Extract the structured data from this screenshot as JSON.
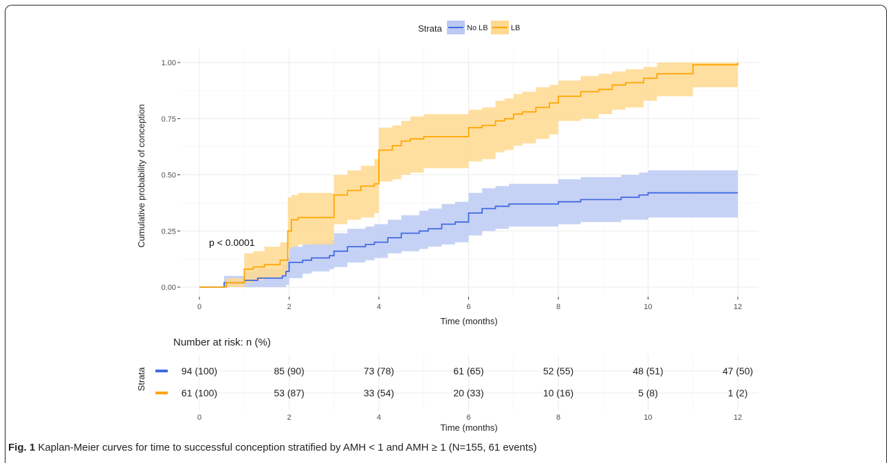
{
  "chart_data": {
    "type": "line",
    "subtype": "kaplan-meier step curves with confidence bands",
    "legend": {
      "title": "Strata",
      "position": "top",
      "entries": [
        {
          "name": "No LB",
          "color": "#4169e1"
        },
        {
          "name": "LB",
          "color": "#ffa500"
        }
      ]
    },
    "xlabel": "Time (months)",
    "ylabel": "Cumulative probability of conception",
    "xlim": [
      0,
      12
    ],
    "ylim": [
      0,
      1
    ],
    "x_ticks": [
      0,
      2,
      4,
      6,
      8,
      10,
      12
    ],
    "y_ticks": [
      "0.00",
      "0.25",
      "0.50",
      "0.75",
      "1.00"
    ],
    "annotation": "p < 0.0001",
    "grid": true,
    "series": [
      {
        "name": "No LB",
        "color": "#4169e1",
        "band_color": "#bccaf3",
        "points": [
          [
            0,
            0
          ],
          [
            0.55,
            0.02
          ],
          [
            1,
            0.03
          ],
          [
            1.3,
            0.04
          ],
          [
            1.85,
            0.05
          ],
          [
            1.93,
            0.07
          ],
          [
            2,
            0.11
          ],
          [
            2.3,
            0.12
          ],
          [
            2.5,
            0.13
          ],
          [
            2.9,
            0.14
          ],
          [
            3,
            0.16
          ],
          [
            3.3,
            0.18
          ],
          [
            3.7,
            0.19
          ],
          [
            3.9,
            0.2
          ],
          [
            4.2,
            0.22
          ],
          [
            4.5,
            0.24
          ],
          [
            4.9,
            0.25
          ],
          [
            5.1,
            0.26
          ],
          [
            5.4,
            0.28
          ],
          [
            5.7,
            0.29
          ],
          [
            6,
            0.33
          ],
          [
            6.3,
            0.35
          ],
          [
            6.6,
            0.36
          ],
          [
            6.9,
            0.37
          ],
          [
            7.6,
            0.37
          ],
          [
            8,
            0.38
          ],
          [
            8.5,
            0.39
          ],
          [
            8.9,
            0.39
          ],
          [
            9.4,
            0.4
          ],
          [
            9.8,
            0.41
          ],
          [
            10,
            0.42
          ],
          [
            12,
            0.42
          ]
        ],
        "lower": [
          [
            0,
            0
          ],
          [
            0.55,
            0
          ],
          [
            1,
            0
          ],
          [
            1.3,
            0
          ],
          [
            1.85,
            0
          ],
          [
            1.93,
            0.01
          ],
          [
            2,
            0.04
          ],
          [
            2.3,
            0.06
          ],
          [
            2.5,
            0.07
          ],
          [
            2.9,
            0.08
          ],
          [
            3,
            0.09
          ],
          [
            3.3,
            0.11
          ],
          [
            3.7,
            0.12
          ],
          [
            3.9,
            0.13
          ],
          [
            4.2,
            0.15
          ],
          [
            4.5,
            0.16
          ],
          [
            4.9,
            0.17
          ],
          [
            5.1,
            0.18
          ],
          [
            5.4,
            0.19
          ],
          [
            5.7,
            0.2
          ],
          [
            6,
            0.23
          ],
          [
            6.3,
            0.25
          ],
          [
            6.6,
            0.26
          ],
          [
            6.9,
            0.27
          ],
          [
            7.6,
            0.27
          ],
          [
            8,
            0.28
          ],
          [
            8.5,
            0.29
          ],
          [
            8.9,
            0.29
          ],
          [
            9.4,
            0.3
          ],
          [
            9.8,
            0.3
          ],
          [
            10,
            0.31
          ],
          [
            12,
            0.31
          ]
        ],
        "upper": [
          [
            0,
            0
          ],
          [
            0.55,
            0.05
          ],
          [
            1,
            0.07
          ],
          [
            1.3,
            0.08
          ],
          [
            1.85,
            0.1
          ],
          [
            1.93,
            0.13
          ],
          [
            2,
            0.18
          ],
          [
            2.3,
            0.19
          ],
          [
            2.5,
            0.2
          ],
          [
            2.9,
            0.21
          ],
          [
            3,
            0.24
          ],
          [
            3.3,
            0.26
          ],
          [
            3.7,
            0.27
          ],
          [
            3.9,
            0.28
          ],
          [
            4.2,
            0.3
          ],
          [
            4.5,
            0.32
          ],
          [
            4.9,
            0.34
          ],
          [
            5.1,
            0.35
          ],
          [
            5.4,
            0.37
          ],
          [
            5.7,
            0.38
          ],
          [
            6,
            0.42
          ],
          [
            6.3,
            0.44
          ],
          [
            6.6,
            0.45
          ],
          [
            6.9,
            0.46
          ],
          [
            7.6,
            0.46
          ],
          [
            8,
            0.48
          ],
          [
            8.5,
            0.49
          ],
          [
            8.9,
            0.49
          ],
          [
            9.4,
            0.5
          ],
          [
            9.8,
            0.51
          ],
          [
            10,
            0.52
          ],
          [
            12,
            0.52
          ]
        ]
      },
      {
        "name": "LB",
        "color": "#ffa500",
        "band_color": "#ffd98f",
        "points": [
          [
            0,
            0
          ],
          [
            0.6,
            0.02
          ],
          [
            1,
            0.08
          ],
          [
            1.2,
            0.09
          ],
          [
            1.45,
            0.1
          ],
          [
            1.8,
            0.12
          ],
          [
            1.97,
            0.25
          ],
          [
            2.05,
            0.3
          ],
          [
            2.2,
            0.31
          ],
          [
            3,
            0.41
          ],
          [
            3.3,
            0.43
          ],
          [
            3.6,
            0.45
          ],
          [
            3.9,
            0.46
          ],
          [
            4,
            0.61
          ],
          [
            4.3,
            0.63
          ],
          [
            4.5,
            0.65
          ],
          [
            4.7,
            0.66
          ],
          [
            5,
            0.67
          ],
          [
            5.9,
            0.67
          ],
          [
            6,
            0.71
          ],
          [
            6.3,
            0.72
          ],
          [
            6.6,
            0.74
          ],
          [
            6.8,
            0.75
          ],
          [
            7,
            0.77
          ],
          [
            7.2,
            0.78
          ],
          [
            7.5,
            0.8
          ],
          [
            7.8,
            0.82
          ],
          [
            8,
            0.85
          ],
          [
            8.5,
            0.87
          ],
          [
            8.9,
            0.88
          ],
          [
            9.2,
            0.9
          ],
          [
            9.5,
            0.91
          ],
          [
            9.9,
            0.93
          ],
          [
            10.2,
            0.95
          ],
          [
            11,
            0.99
          ],
          [
            12,
            1
          ]
        ],
        "lower": [
          [
            0,
            0
          ],
          [
            0.6,
            0
          ],
          [
            1,
            0.02
          ],
          [
            1.2,
            0.03
          ],
          [
            1.45,
            0.04
          ],
          [
            1.8,
            0.05
          ],
          [
            1.97,
            0.17
          ],
          [
            2.05,
            0.18
          ],
          [
            2.2,
            0.19
          ],
          [
            3,
            0.28
          ],
          [
            3.3,
            0.3
          ],
          [
            3.6,
            0.31
          ],
          [
            3.9,
            0.33
          ],
          [
            4,
            0.47
          ],
          [
            4.3,
            0.48
          ],
          [
            4.5,
            0.5
          ],
          [
            4.7,
            0.51
          ],
          [
            5,
            0.53
          ],
          [
            5.9,
            0.53
          ],
          [
            6,
            0.56
          ],
          [
            6.3,
            0.57
          ],
          [
            6.6,
            0.6
          ],
          [
            6.8,
            0.61
          ],
          [
            7,
            0.63
          ],
          [
            7.2,
            0.64
          ],
          [
            7.5,
            0.66
          ],
          [
            7.8,
            0.68
          ],
          [
            8,
            0.74
          ],
          [
            8.5,
            0.75
          ],
          [
            8.9,
            0.77
          ],
          [
            9.2,
            0.79
          ],
          [
            9.5,
            0.8
          ],
          [
            9.9,
            0.83
          ],
          [
            10.2,
            0.85
          ],
          [
            11,
            0.89
          ],
          [
            12,
            0.89
          ]
        ],
        "upper": [
          [
            0,
            0
          ],
          [
            0.6,
            0.04
          ],
          [
            1,
            0.15
          ],
          [
            1.2,
            0.16
          ],
          [
            1.45,
            0.18
          ],
          [
            1.8,
            0.2
          ],
          [
            1.97,
            0.4
          ],
          [
            2.05,
            0.41
          ],
          [
            2.2,
            0.42
          ],
          [
            3,
            0.5
          ],
          [
            3.3,
            0.52
          ],
          [
            3.6,
            0.54
          ],
          [
            3.9,
            0.57
          ],
          [
            4,
            0.71
          ],
          [
            4.3,
            0.72
          ],
          [
            4.5,
            0.74
          ],
          [
            4.7,
            0.76
          ],
          [
            5,
            0.77
          ],
          [
            5.9,
            0.77
          ],
          [
            6,
            0.79
          ],
          [
            6.3,
            0.8
          ],
          [
            6.6,
            0.83
          ],
          [
            6.8,
            0.84
          ],
          [
            7,
            0.86
          ],
          [
            7.2,
            0.87
          ],
          [
            7.5,
            0.89
          ],
          [
            7.8,
            0.9
          ],
          [
            8,
            0.92
          ],
          [
            8.5,
            0.94
          ],
          [
            8.9,
            0.95
          ],
          [
            9.2,
            0.96
          ],
          [
            9.5,
            0.97
          ],
          [
            9.9,
            0.98
          ],
          [
            10.2,
            1
          ],
          [
            11,
            1
          ],
          [
            12,
            1
          ]
        ]
      }
    ],
    "risk_table": {
      "title": "Number at risk: n (%)",
      "ylabel": "Strata",
      "xlabel": "Time (months)",
      "times": [
        0,
        2,
        4,
        6,
        8,
        10,
        12
      ],
      "rows": [
        {
          "name": "No LB",
          "color": "#4169e1",
          "values": [
            "94 (100)",
            "85 (90)",
            "73 (78)",
            "61 (65)",
            "52 (55)",
            "48 (51)",
            "47 (50)"
          ]
        },
        {
          "name": "LB",
          "color": "#ffa500",
          "values": [
            "61 (100)",
            "53 (87)",
            "33 (54)",
            "20 (33)",
            "10 (16)",
            "5 (8)",
            "1 (2)"
          ]
        }
      ]
    }
  },
  "caption": {
    "label": "Fig. 1",
    "text": "Kaplan-Meier curves for time to successful conception stratified by AMH < 1 and AMH ≥ 1 (N=155, 61 events)"
  }
}
